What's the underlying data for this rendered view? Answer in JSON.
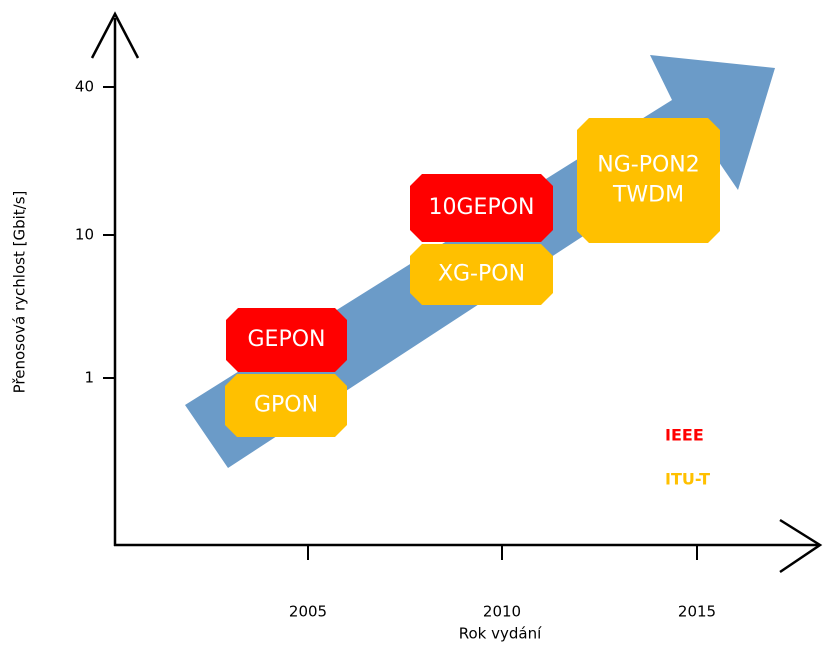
{
  "axes": {
    "y_label": "Přenosová rychlost [Gbit/s]",
    "x_label": "Rok vydání",
    "y_ticks": [
      "40",
      "10",
      "1"
    ],
    "x_ticks": [
      "2005",
      "2010",
      "2015"
    ]
  },
  "nodes": [
    {
      "lines": [
        "GEPON"
      ],
      "group": "IEEE"
    },
    {
      "lines": [
        "GPON"
      ],
      "group": "ITU-T"
    },
    {
      "lines": [
        "10GEPON"
      ],
      "group": "IEEE"
    },
    {
      "lines": [
        "XG-PON"
      ],
      "group": "ITU-T"
    },
    {
      "lines": [
        "NG-PON2",
        "TWDM"
      ],
      "group": "ITU-T"
    }
  ],
  "legend": [
    {
      "label": "IEEE",
      "color": "#ff0000"
    },
    {
      "label": "ITU-T",
      "color": "#ffc000"
    }
  ]
}
